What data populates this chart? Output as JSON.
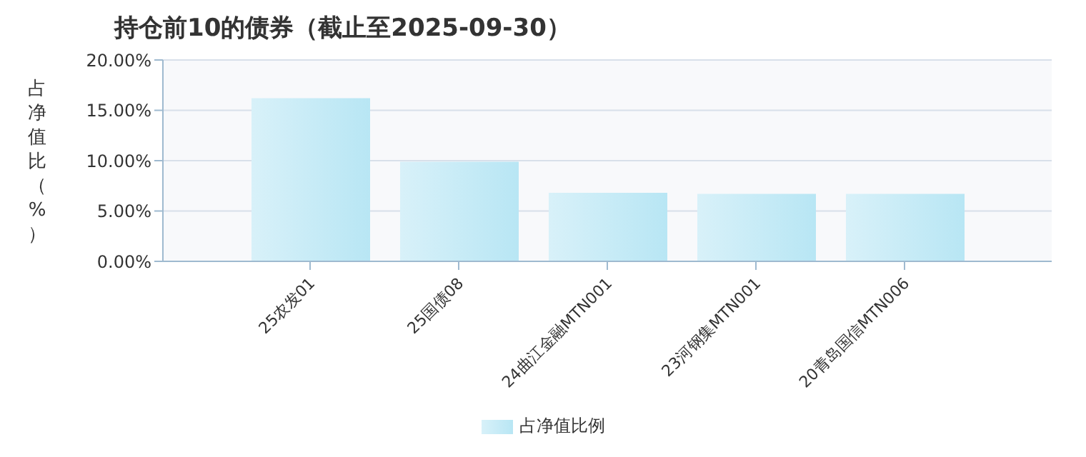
{
  "chart_data": {
    "type": "bar",
    "title": "持仓前10的债券（截止至2025-09-30）",
    "ylabel": "占净值比（%）",
    "categories": [
      "25农发01",
      "25国债08",
      "24曲江金融MTN001",
      "23河钢集MTN001",
      "20青岛国信MTN006"
    ],
    "series": [
      {
        "name": "占净值比例",
        "color": "#b8e6f4",
        "values": [
          16.2,
          9.9,
          6.8,
          6.7,
          6.7
        ]
      }
    ],
    "ylim": [
      0,
      20
    ],
    "yticks": [
      {
        "value": 0,
        "label": "0.00%"
      },
      {
        "value": 5,
        "label": "5.00%"
      },
      {
        "value": 10,
        "label": "10.00%"
      },
      {
        "value": 15,
        "label": "15.00%"
      },
      {
        "value": 20,
        "label": "20.00%"
      }
    ],
    "grid": "y",
    "legend": "bottom"
  }
}
